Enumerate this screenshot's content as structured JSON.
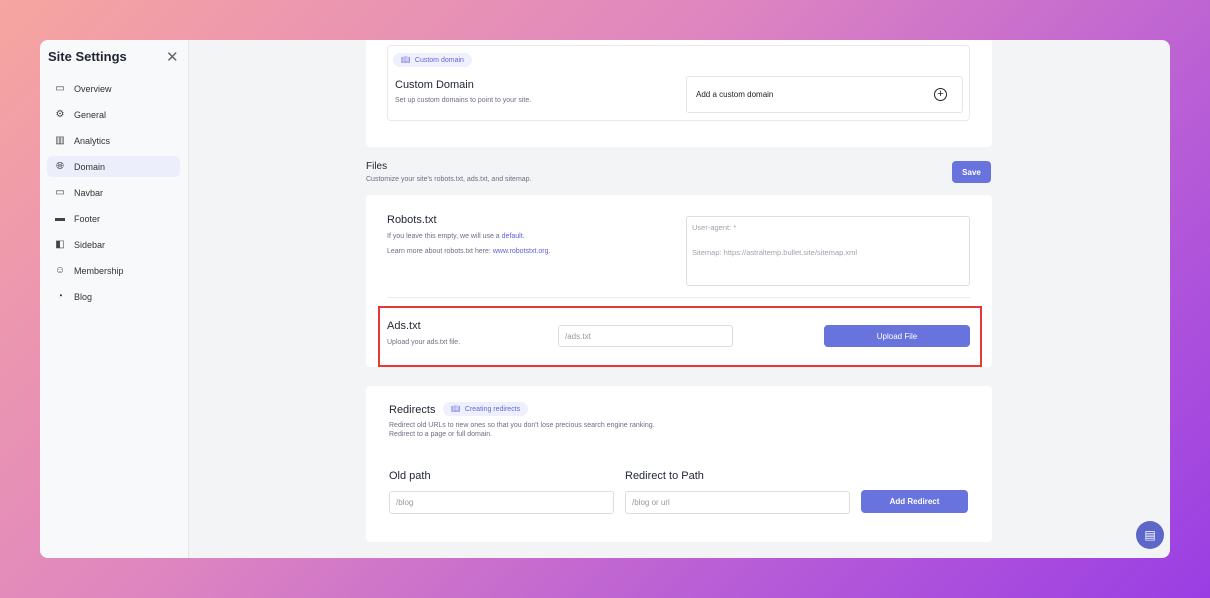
{
  "sidebar": {
    "title": "Site Settings",
    "items": [
      {
        "label": "Overview",
        "icon": "presentation-icon"
      },
      {
        "label": "General",
        "icon": "gear-icon"
      },
      {
        "label": "Analytics",
        "icon": "bar-chart-icon"
      },
      {
        "label": "Domain",
        "icon": "globe-icon",
        "active": true
      },
      {
        "label": "Navbar",
        "icon": "monitor-icon"
      },
      {
        "label": "Footer",
        "icon": "footer-icon"
      },
      {
        "label": "Sidebar",
        "icon": "sidebar-icon"
      },
      {
        "label": "Membership",
        "icon": "users-icon"
      },
      {
        "label": "Blog",
        "icon": "blog-icon"
      }
    ]
  },
  "custom_domain": {
    "pill": "Custom domain",
    "title": "Custom Domain",
    "desc": "Set up custom domains to point to your site.",
    "add_label": "Add a custom domain"
  },
  "files": {
    "title": "Files",
    "desc": "Customize your site's robots.txt, ads.txt, and sitemap.",
    "save": "Save",
    "robots": {
      "title": "Robots.txt",
      "line1_pre": "If you leave this empty, we will use a ",
      "line1_link": "default",
      "line1_post": ".",
      "line2_pre": "Learn more about robots.txt here: ",
      "line2_link": "www.robotstxt.org",
      "line2_post": ".",
      "placeholder_line1": "User-agent: *",
      "placeholder_line2": "Sitemap: https://astraltemp.bullet.site/sitemap.xml"
    },
    "ads": {
      "title": "Ads.txt",
      "desc": "Upload your ads.txt file.",
      "placeholder": "/ads.txt",
      "upload": "Upload File"
    }
  },
  "redirects": {
    "title": "Redirects",
    "pill": "Creating redirects",
    "desc1": "Redirect old URLs to new ones so that you don't lose precious search engine ranking.",
    "desc2": "Redirect to a page or full domain.",
    "old_label": "Old path",
    "old_placeholder": "/blog",
    "to_label": "Redirect to Path",
    "to_placeholder": "/blog or url",
    "add": "Add Redirect"
  },
  "colors": {
    "accent": "#6873de",
    "highlight": "#e53935"
  }
}
